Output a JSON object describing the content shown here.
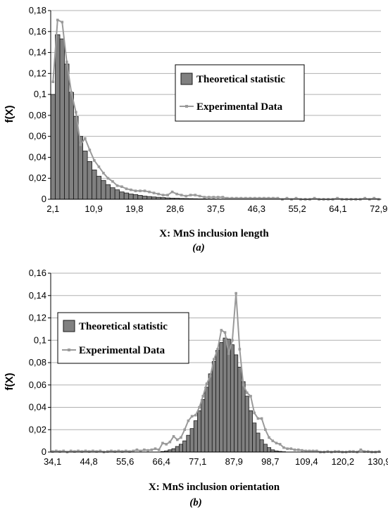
{
  "colors": {
    "bar_fill": "#808080",
    "bar_stroke": "#1a1a1a",
    "line": "#9a9a9a",
    "grid": "#b0b0b0",
    "axis": "#000000",
    "background": "#ffffff"
  },
  "chart_data": [
    {
      "type": "bar",
      "caption": "(a)",
      "xlabel": "X: MnS inclusion length",
      "ylabel": "f(X)",
      "ylim": [
        0,
        0.18
      ],
      "y_ticks": [
        "0",
        "0,02",
        "0,04",
        "0,06",
        "0,08",
        "0,1",
        "0,12",
        "0,14",
        "0,16",
        "0,18"
      ],
      "x_tick_labels": [
        "2,1",
        "10,9",
        "19,8",
        "28,6",
        "37,5",
        "46,3",
        "55,2",
        "64,1",
        "72,9"
      ],
      "grid": true,
      "legend_placement": "right",
      "series": [
        {
          "name": "Theoretical statistic",
          "kind": "bar",
          "values": [
            0.1,
            0.157,
            0.153,
            0.129,
            0.102,
            0.079,
            0.06,
            0.046,
            0.036,
            0.028,
            0.022,
            0.018,
            0.014,
            0.011,
            0.009,
            0.007,
            0.006,
            0.005,
            0.0045,
            0.0037,
            0.003,
            0.0026,
            0.0022,
            0.0019,
            0.0016,
            0.0013,
            0.0011,
            0.001,
            0.0008,
            0.0007,
            0.0006,
            0.0005,
            0.0004,
            0.0004,
            0.0003,
            0.0003,
            0.0002,
            0.0002,
            0.0002,
            0.0002,
            0.0001,
            0.0001,
            0.0001,
            0.0001,
            0.0001,
            0.0001,
            0.0001,
            0.0001,
            0.0001,
            0.0001,
            0.0001,
            0.0001,
            0.0001,
            0.0001,
            0.0001,
            0.0001,
            0.0001,
            0.0001,
            0.0001,
            0.0001,
            0.0001,
            0.0001,
            0.0001,
            0.0001,
            0.0001,
            0.0001,
            0.0001,
            0.0001,
            0.0001,
            0.0001,
            0.0001,
            0.0001
          ]
        },
        {
          "name": "Experimental Data",
          "kind": "line",
          "values": [
            0.112,
            0.171,
            0.169,
            0.131,
            0.102,
            0.083,
            0.052,
            0.058,
            0.047,
            0.037,
            0.031,
            0.025,
            0.02,
            0.017,
            0.013,
            0.012,
            0.01,
            0.009,
            0.008,
            0.008,
            0.008,
            0.007,
            0.006,
            0.005,
            0.004,
            0.004,
            0.007,
            0.005,
            0.004,
            0.003,
            0.004,
            0.004,
            0.003,
            0.002,
            0.002,
            0.002,
            0.002,
            0.002,
            0.001,
            0.001,
            0.001,
            0.001,
            0.001,
            0.001,
            0.001,
            0.001,
            0.001,
            0.001,
            0.001,
            0.001,
            0.0,
            0.001,
            0.0,
            0.001,
            0.0,
            0.0,
            0.0,
            0.001,
            0.0,
            0.0,
            0.0,
            0.0,
            0.001,
            0.0,
            0.0,
            0.0,
            0.0,
            0.0,
            0.001,
            0.0,
            0.001,
            0.0
          ]
        }
      ]
    },
    {
      "type": "bar",
      "caption": "(b)",
      "xlabel": "X: MnS inclusion orientation",
      "ylabel": "f(X)",
      "ylim": [
        0,
        0.16
      ],
      "y_ticks": [
        "0",
        "0,02",
        "0,04",
        "0,06",
        "0,08",
        "0,1",
        "0,12",
        "0,14",
        "0,16"
      ],
      "x_tick_labels": [
        "34,1",
        "44,8",
        "55,6",
        "66,4",
        "77,1",
        "87,9",
        "98,7",
        "109,4",
        "120,2",
        "130,9"
      ],
      "grid": true,
      "legend_placement": "left",
      "series": [
        {
          "name": "Theoretical statistic",
          "kind": "bar",
          "values": [
            0,
            0,
            0,
            0,
            0,
            0,
            0,
            0,
            0,
            0,
            0,
            0,
            0,
            0,
            0,
            0,
            0,
            0,
            0,
            0,
            0,
            0,
            0,
            0,
            0,
            0,
            0,
            0,
            0,
            0,
            0.0005,
            0.001,
            0.002,
            0.003,
            0.005,
            0.007,
            0.01,
            0.015,
            0.021,
            0.028,
            0.037,
            0.047,
            0.058,
            0.07,
            0.081,
            0.091,
            0.098,
            0.102,
            0.101,
            0.096,
            0.087,
            0.076,
            0.063,
            0.05,
            0.037,
            0.026,
            0.017,
            0.011,
            0.007,
            0.004,
            0.002,
            0.001,
            0.0006,
            0.0003,
            0,
            0,
            0,
            0,
            0,
            0,
            0,
            0,
            0,
            0,
            0,
            0,
            0,
            0,
            0,
            0,
            0,
            0,
            0,
            0,
            0,
            0,
            0,
            0,
            0,
            0
          ]
        },
        {
          "name": "Experimental Data",
          "kind": "line",
          "values": [
            0.0005,
            0.001,
            0.0005,
            0.001,
            0,
            0.001,
            0.0005,
            0.001,
            0.0005,
            0.001,
            0.0005,
            0.001,
            0.0005,
            0.001,
            0,
            0.0005,
            0.001,
            0.0005,
            0.001,
            0.0005,
            0.001,
            0.0005,
            0.001,
            0.002,
            0.001,
            0.002,
            0.0015,
            0.002,
            0.003,
            0.002,
            0.008,
            0.007,
            0.009,
            0.014,
            0.011,
            0.013,
            0.02,
            0.028,
            0.032,
            0.033,
            0.04,
            0.05,
            0.061,
            0.068,
            0.083,
            0.092,
            0.109,
            0.107,
            0.088,
            0.1,
            0.142,
            0.092,
            0.06,
            0.053,
            0.05,
            0.035,
            0.03,
            0.03,
            0.02,
            0.013,
            0.01,
            0.008,
            0.007,
            0.004,
            0.003,
            0.003,
            0.002,
            0.002,
            0.0015,
            0.001,
            0.001,
            0.001,
            0.001,
            0,
            0,
            0.0005,
            0,
            0.0005,
            0.0005,
            0,
            0,
            0.0005,
            0.0005,
            0,
            0.002,
            0.0005,
            0.0005,
            0,
            0,
            0.0005
          ]
        }
      ]
    }
  ]
}
